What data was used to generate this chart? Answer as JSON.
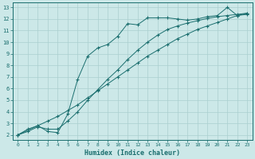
{
  "xlabel": "Humidex (Indice chaleur)",
  "ylabel": "",
  "bg_color": "#cce8e8",
  "grid_color": "#aacfcf",
  "line_color": "#1a6e6e",
  "xlim": [
    -0.5,
    23.5
  ],
  "ylim": [
    1.6,
    13.4
  ],
  "xticks": [
    0,
    1,
    2,
    3,
    4,
    5,
    6,
    7,
    8,
    9,
    10,
    11,
    12,
    13,
    14,
    15,
    16,
    17,
    18,
    19,
    20,
    21,
    22,
    23
  ],
  "yticks": [
    2,
    3,
    4,
    5,
    6,
    7,
    8,
    9,
    10,
    11,
    12,
    13
  ],
  "line1_x": [
    0,
    1,
    2,
    3,
    4,
    5,
    6,
    7,
    8,
    9,
    10,
    11,
    12,
    13,
    14,
    15,
    16,
    17,
    18,
    19,
    20,
    21,
    22,
    23
  ],
  "line1_y": [
    2.0,
    2.5,
    2.8,
    2.3,
    2.2,
    3.8,
    6.8,
    8.8,
    9.5,
    9.8,
    10.5,
    11.6,
    11.5,
    12.1,
    12.1,
    12.1,
    12.0,
    11.9,
    12.0,
    12.2,
    12.3,
    13.0,
    12.3,
    12.4
  ],
  "line2_x": [
    0,
    2,
    3,
    4,
    5,
    6,
    7,
    8,
    9,
    10,
    11,
    12,
    13,
    14,
    15,
    16,
    17,
    18,
    19,
    20,
    21,
    22,
    23
  ],
  "line2_y": [
    2.0,
    2.8,
    3.2,
    3.6,
    4.1,
    4.6,
    5.2,
    5.8,
    6.4,
    7.0,
    7.6,
    8.2,
    8.8,
    9.3,
    9.8,
    10.3,
    10.7,
    11.1,
    11.4,
    11.7,
    12.0,
    12.3,
    12.5
  ],
  "line3_x": [
    0,
    1,
    2,
    3,
    4,
    5,
    6,
    7,
    8,
    9,
    10,
    11,
    12,
    13,
    14,
    15,
    16,
    17,
    18,
    19,
    20,
    21,
    22,
    23
  ],
  "line3_y": [
    2.0,
    2.3,
    2.7,
    2.5,
    2.5,
    3.2,
    4.0,
    5.0,
    5.9,
    6.8,
    7.6,
    8.5,
    9.3,
    10.0,
    10.6,
    11.1,
    11.4,
    11.65,
    11.85,
    12.05,
    12.2,
    12.3,
    12.4,
    12.5
  ]
}
